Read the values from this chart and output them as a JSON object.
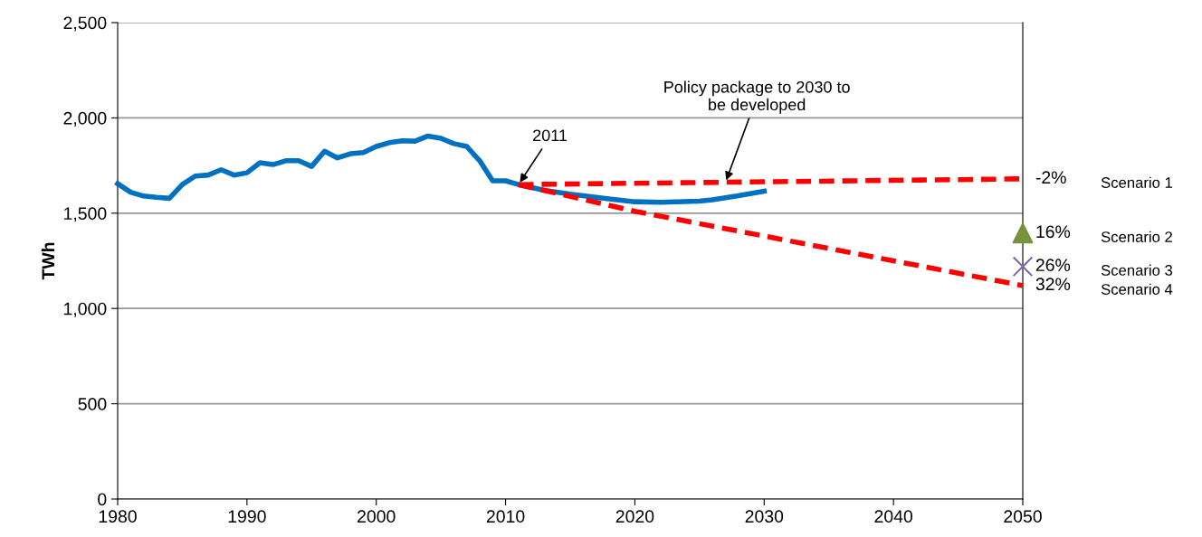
{
  "chart_data": {
    "type": "line",
    "ylabel": "TWh",
    "xlim": [
      1980,
      2050
    ],
    "xticks": [
      1980,
      1990,
      2000,
      2010,
      2020,
      2030,
      2040,
      2050
    ],
    "ylim": [
      0,
      2500
    ],
    "yticks": [
      {
        "value": 0,
        "label": "0"
      },
      {
        "value": 500,
        "label": "500"
      },
      {
        "value": 1000,
        "label": "1,000"
      },
      {
        "value": 1500,
        "label": "1,500"
      },
      {
        "value": 2000,
        "label": "2,000"
      },
      {
        "value": 2500,
        "label": "2,500"
      }
    ],
    "grid": "y",
    "legend": false,
    "series": [
      {
        "color": "#0070c0",
        "line_style": "solid",
        "marker": "none",
        "x": [
          1980,
          1981,
          1982,
          1983,
          1984,
          1985,
          1986,
          1987,
          1988,
          1989,
          1990,
          1991,
          1992,
          1993,
          1994,
          1995,
          1996,
          1997,
          1998,
          1999,
          2000,
          2001,
          2002,
          2003,
          2004,
          2005,
          2006,
          2007,
          2008,
          2009,
          2010,
          2011,
          2013,
          2015,
          2018,
          2020,
          2022,
          2025,
          2026,
          2028,
          2030
        ],
        "values": [
          1655,
          1610,
          1590,
          1583,
          1578,
          1650,
          1695,
          1700,
          1728,
          1700,
          1712,
          1765,
          1755,
          1775,
          1775,
          1745,
          1825,
          1790,
          1812,
          1818,
          1850,
          1870,
          1880,
          1878,
          1905,
          1893,
          1865,
          1850,
          1775,
          1670,
          1670,
          1650,
          1620,
          1600,
          1575,
          1560,
          1557,
          1563,
          1570,
          1592,
          1615
        ]
      },
      {
        "name": "Scenario 1",
        "color": "#ff0000",
        "line_style": "dashed",
        "marker": "none",
        "x": [
          2011,
          2050
        ],
        "values": [
          1650,
          1680
        ]
      },
      {
        "name": "Scenario 2",
        "type": "scatter",
        "color": "#77933c",
        "marker": "triangle",
        "x": [
          2050
        ],
        "values": [
          1395
        ]
      },
      {
        "name": "Scenario 3",
        "type": "scatter",
        "color": "#7f64a8",
        "marker": "cross",
        "x": [
          2050
        ],
        "values": [
          1220
        ]
      },
      {
        "name": "Scenario 4",
        "color": "#ff0000",
        "line_style": "dashed",
        "marker": "none",
        "x": [
          2011,
          2020,
          2030,
          2040,
          2050
        ],
        "values": [
          1650,
          1510,
          1380,
          1250,
          1120
        ]
      }
    ],
    "annotations": [
      {
        "text": "2011",
        "x": 2011,
        "y": 1650
      },
      {
        "text": "Policy package to 2030 to\nbe developed",
        "x": 2027,
        "y": 1660
      },
      {
        "text": "-2%",
        "x": 2050,
        "y": 1680
      },
      {
        "text": "16%",
        "x": 2050,
        "y": 1395
      },
      {
        "text": "26%",
        "x": 2050,
        "y": 1220
      },
      {
        "text": "32%",
        "x": 2050,
        "y": 1120
      }
    ]
  }
}
